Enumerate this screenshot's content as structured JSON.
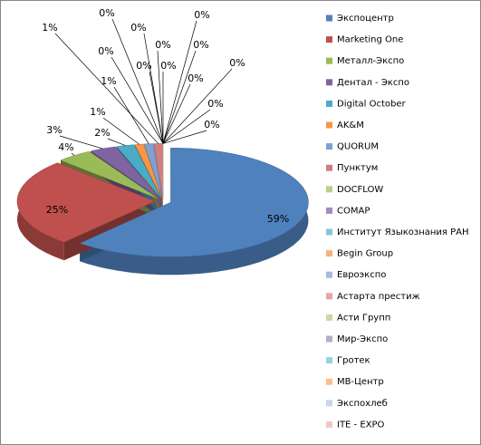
{
  "chart_data": {
    "type": "pie",
    "categories": [
      "Экспоцентр",
      "Marketing One",
      "Металл-Экспо",
      "Дентал - Экспо",
      "Digital October",
      "AK&M",
      "QUORUM",
      "Пунктум",
      "DOCFLOW",
      "COMAP",
      "Институт Языкознания РАН",
      "Begin Group",
      "Евроэкспо",
      "Астарта престиж",
      "Асти Групп",
      "Мир-Экспо",
      "Гротек",
      "MB-Центр",
      "Экспохлеб",
      "ITE - EXPO"
    ],
    "values": [
      59,
      25,
      4,
      3,
      2,
      1,
      1,
      1,
      0,
      0,
      0,
      0,
      0,
      0,
      0,
      0,
      0,
      0,
      0,
      0
    ],
    "value_labels": [
      "59%",
      "25%",
      "4%",
      "3%",
      "2%",
      "1%",
      "1%",
      "1%",
      "0%",
      "0%",
      "0%",
      "0%",
      "0%",
      "0%",
      "0%",
      "0%",
      "0%",
      "0%",
      "0%",
      "0%"
    ],
    "colors": [
      "#4f81bd",
      "#c0504d",
      "#9bbb59",
      "#8064a2",
      "#4bacc6",
      "#f79646",
      "#7fa1d1",
      "#d07f7c",
      "#b8ce8d",
      "#a28ebd",
      "#84c5d8",
      "#f9b27a",
      "#a6b9dc",
      "#e6a5a3",
      "#c7d9a5",
      "#b9a9cc",
      "#9ad0e0",
      "#fac08f",
      "#c9d5ea",
      "#f2c8c6"
    ],
    "legend": "right"
  }
}
